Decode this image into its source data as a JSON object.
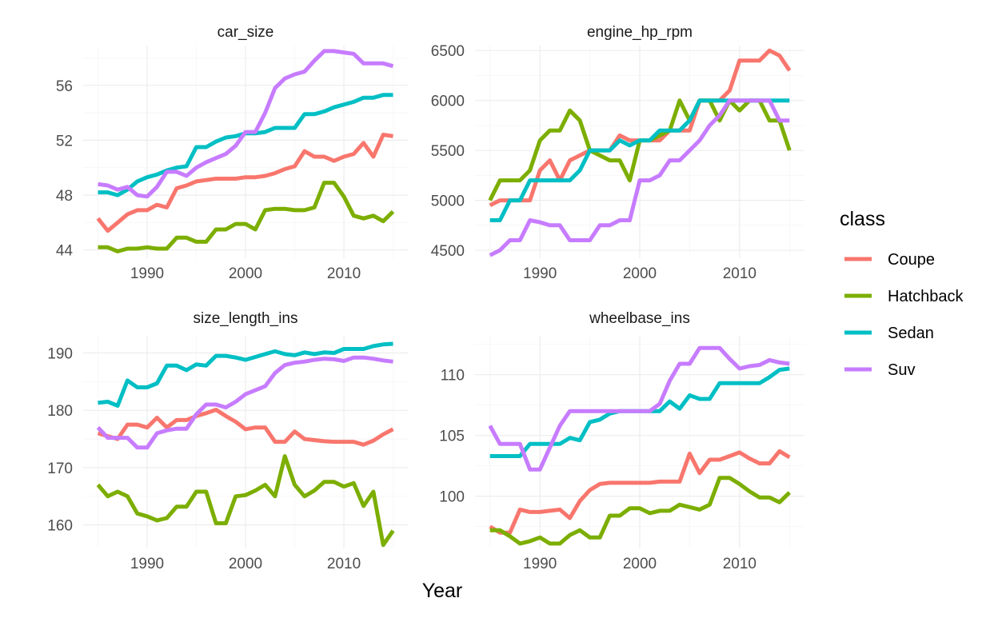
{
  "colors": {
    "Coupe": "#F8766D",
    "Hatchback": "#7CAE00",
    "Sedan": "#00BFC4",
    "Suv": "#C77CFF"
  },
  "axis": {
    "xlabel": "Year"
  },
  "legend": {
    "title": "class",
    "placement": "right",
    "items": [
      "Coupe",
      "Hatchback",
      "Sedan",
      "Suv"
    ]
  },
  "chart_data": [
    {
      "type": "line",
      "title": "car_size",
      "xlabel": "Year",
      "ylabel": "",
      "xlim": [
        1983.5,
        2016.5
      ],
      "ylim": [
        43.4,
        58.9
      ],
      "xticks": [
        1990,
        2000,
        2010
      ],
      "yticks": [
        44,
        48,
        52,
        56
      ],
      "x": [
        1985,
        1986,
        1987,
        1988,
        1989,
        1990,
        1991,
        1992,
        1993,
        1994,
        1995,
        1996,
        1997,
        1998,
        1999,
        2000,
        2001,
        2002,
        2003,
        2004,
        2005,
        2006,
        2007,
        2008,
        2009,
        2010,
        2011,
        2012,
        2013,
        2014,
        2015
      ],
      "series": [
        {
          "name": "Coupe",
          "values": [
            46.3,
            45.4,
            46.0,
            46.6,
            46.9,
            46.9,
            47.3,
            47.1,
            48.5,
            48.7,
            49.0,
            49.1,
            49.2,
            49.2,
            49.2,
            49.3,
            49.3,
            49.4,
            49.6,
            49.9,
            50.1,
            51.2,
            50.8,
            50.8,
            50.5,
            50.8,
            51.0,
            51.8,
            50.8,
            52.4,
            52.3
          ]
        },
        {
          "name": "Hatchback",
          "values": [
            44.2,
            44.2,
            43.9,
            44.1,
            44.1,
            44.2,
            44.1,
            44.1,
            44.9,
            44.9,
            44.6,
            44.6,
            45.5,
            45.5,
            45.9,
            45.9,
            45.5,
            46.9,
            47.0,
            47.0,
            46.9,
            46.9,
            47.1,
            48.9,
            48.9,
            47.9,
            46.5,
            46.3,
            46.5,
            46.1,
            46.8
          ]
        },
        {
          "name": "Sedan",
          "values": [
            48.2,
            48.2,
            48.0,
            48.4,
            49.0,
            49.3,
            49.5,
            49.8,
            50.0,
            50.1,
            51.5,
            51.5,
            51.9,
            52.2,
            52.3,
            52.5,
            52.5,
            52.6,
            52.9,
            52.9,
            52.9,
            53.9,
            53.9,
            54.1,
            54.4,
            54.6,
            54.8,
            55.1,
            55.1,
            55.3,
            55.3
          ]
        },
        {
          "name": "Suv",
          "values": [
            48.8,
            48.7,
            48.4,
            48.6,
            48.0,
            47.9,
            48.6,
            49.7,
            49.7,
            49.4,
            50.0,
            50.4,
            50.7,
            51.0,
            51.6,
            52.6,
            52.6,
            54.0,
            55.8,
            56.5,
            56.8,
            57.0,
            57.8,
            58.5,
            58.5,
            58.4,
            58.3,
            57.6,
            57.6,
            57.6,
            57.4
          ]
        }
      ]
    },
    {
      "type": "line",
      "title": "engine_hp_rpm",
      "xlabel": "Year",
      "ylabel": "",
      "xlim": [
        1983.5,
        2016.5
      ],
      "ylim": [
        4420,
        6550
      ],
      "xticks": [
        1990,
        2000,
        2010
      ],
      "yticks": [
        4500,
        5000,
        5500,
        6000,
        6500
      ],
      "x": [
        1985,
        1986,
        1987,
        1988,
        1989,
        1990,
        1991,
        1992,
        1993,
        1994,
        1995,
        1996,
        1997,
        1998,
        1999,
        2000,
        2001,
        2002,
        2003,
        2004,
        2005,
        2006,
        2007,
        2008,
        2009,
        2010,
        2011,
        2012,
        2013,
        2014,
        2015
      ],
      "series": [
        {
          "name": "Coupe",
          "values": [
            4950,
            5000,
            5000,
            5000,
            5000,
            5300,
            5400,
            5200,
            5400,
            5450,
            5500,
            5500,
            5500,
            5650,
            5600,
            5600,
            5600,
            5600,
            5700,
            5700,
            5700,
            6000,
            6000,
            6000,
            6100,
            6400,
            6400,
            6400,
            6500,
            6450,
            6300
          ]
        },
        {
          "name": "Hatchback",
          "values": [
            5000,
            5200,
            5200,
            5200,
            5300,
            5600,
            5700,
            5700,
            5900,
            5800,
            5500,
            5450,
            5400,
            5400,
            5200,
            5600,
            5600,
            5650,
            5700,
            6000,
            5800,
            6000,
            6000,
            5800,
            6000,
            5900,
            6000,
            6000,
            5800,
            5800,
            5500
          ]
        },
        {
          "name": "Sedan",
          "values": [
            4800,
            4800,
            5000,
            5000,
            5200,
            5200,
            5200,
            5200,
            5200,
            5300,
            5500,
            5500,
            5500,
            5600,
            5550,
            5600,
            5600,
            5700,
            5700,
            5700,
            5800,
            6000,
            6000,
            6000,
            6000,
            6000,
            6000,
            6000,
            6000,
            6000,
            6000
          ]
        },
        {
          "name": "Suv",
          "values": [
            4450,
            4500,
            4600,
            4600,
            4800,
            4780,
            4750,
            4750,
            4600,
            4600,
            4600,
            4750,
            4750,
            4800,
            4800,
            5200,
            5200,
            5250,
            5400,
            5400,
            5500,
            5600,
            5750,
            5850,
            6000,
            6000,
            6000,
            6000,
            6000,
            5800,
            5800
          ]
        }
      ]
    },
    {
      "type": "line",
      "title": "size_length_ins",
      "xlabel": "Year",
      "ylabel": "",
      "xlim": [
        1983.5,
        2016.5
      ],
      "ylim": [
        155.9,
        193.0
      ],
      "xticks": [
        1990,
        2000,
        2010
      ],
      "yticks": [
        160,
        170,
        180,
        190
      ],
      "x": [
        1985,
        1986,
        1987,
        1988,
        1989,
        1990,
        1991,
        1992,
        1993,
        1994,
        1995,
        1996,
        1997,
        1998,
        1999,
        2000,
        2001,
        2002,
        2003,
        2004,
        2005,
        2006,
        2007,
        2008,
        2009,
        2010,
        2011,
        2012,
        2013,
        2014,
        2015
      ],
      "series": [
        {
          "name": "Coupe",
          "values": [
            176.0,
            175.5,
            175.0,
            177.5,
            177.5,
            177.0,
            178.7,
            177.0,
            178.3,
            178.3,
            179.0,
            179.5,
            180.1,
            179.0,
            178.0,
            176.7,
            177.0,
            177.0,
            174.5,
            174.5,
            176.3,
            175.0,
            174.8,
            174.6,
            174.5,
            174.5,
            174.5,
            174.0,
            174.7,
            175.8,
            176.7
          ]
        },
        {
          "name": "Hatchback",
          "values": [
            167.0,
            165.0,
            165.8,
            165.0,
            162.0,
            161.5,
            160.8,
            161.2,
            163.2,
            163.2,
            165.8,
            165.8,
            160.3,
            160.3,
            165.0,
            165.2,
            166.0,
            167.0,
            165.0,
            172.0,
            167.0,
            165.0,
            166.0,
            167.5,
            167.5,
            166.7,
            167.3,
            163.3,
            165.8,
            156.5,
            159.0
          ]
        },
        {
          "name": "Sedan",
          "values": [
            181.3,
            181.5,
            180.8,
            185.2,
            184.0,
            184.0,
            184.7,
            187.8,
            187.8,
            187.0,
            188.0,
            187.8,
            189.5,
            189.5,
            189.2,
            188.8,
            189.3,
            189.8,
            190.3,
            189.8,
            189.6,
            190.1,
            189.8,
            190.1,
            190.0,
            190.7,
            190.7,
            190.7,
            191.2,
            191.5,
            191.6
          ]
        },
        {
          "name": "Suv",
          "values": [
            177.0,
            175.2,
            175.2,
            175.2,
            173.5,
            173.5,
            176.0,
            176.5,
            176.8,
            176.8,
            179.3,
            181.0,
            181.0,
            180.5,
            181.5,
            182.8,
            183.5,
            184.2,
            186.5,
            187.9,
            188.3,
            188.5,
            188.8,
            189.0,
            188.9,
            188.6,
            189.2,
            189.2,
            189.0,
            188.7,
            188.5
          ]
        }
      ]
    },
    {
      "type": "line",
      "title": "wheelbase_ins",
      "xlabel": "Year",
      "ylabel": "",
      "xlim": [
        1983.5,
        2016.5
      ],
      "ylim": [
        95.7,
        113.2
      ],
      "xticks": [
        1990,
        2000,
        2010
      ],
      "yticks": [
        100,
        105,
        110
      ],
      "x": [
        1985,
        1986,
        1987,
        1988,
        1989,
        1990,
        1991,
        1992,
        1993,
        1994,
        1995,
        1996,
        1997,
        1998,
        1999,
        2000,
        2001,
        2002,
        2003,
        2004,
        2005,
        2006,
        2007,
        2008,
        2009,
        2010,
        2011,
        2012,
        2013,
        2014,
        2015
      ],
      "series": [
        {
          "name": "Coupe",
          "values": [
            97.5,
            97.0,
            97.0,
            98.9,
            98.7,
            98.7,
            98.8,
            98.9,
            98.2,
            99.6,
            100.5,
            101.0,
            101.1,
            101.1,
            101.1,
            101.1,
            101.1,
            101.2,
            101.2,
            101.2,
            103.5,
            101.9,
            103.0,
            103.0,
            103.3,
            103.6,
            103.1,
            102.7,
            102.7,
            103.7,
            103.2
          ]
        },
        {
          "name": "Hatchback",
          "values": [
            97.2,
            97.2,
            96.7,
            96.1,
            96.3,
            96.6,
            96.1,
            96.1,
            96.8,
            97.2,
            96.6,
            96.6,
            98.4,
            98.4,
            99.0,
            99.0,
            98.6,
            98.8,
            98.8,
            99.3,
            99.1,
            98.9,
            99.3,
            101.5,
            101.5,
            101.0,
            100.4,
            99.9,
            99.9,
            99.5,
            100.3
          ]
        },
        {
          "name": "Sedan",
          "values": [
            103.3,
            103.3,
            103.3,
            103.3,
            104.3,
            104.3,
            104.3,
            104.3,
            104.8,
            104.6,
            106.1,
            106.3,
            106.8,
            107.0,
            107.0,
            107.0,
            107.0,
            107.0,
            107.8,
            107.2,
            108.3,
            108.0,
            108.0,
            109.3,
            109.3,
            109.3,
            109.3,
            109.3,
            109.8,
            110.4,
            110.5
          ]
        },
        {
          "name": "Suv",
          "values": [
            105.8,
            104.3,
            104.3,
            104.3,
            102.2,
            102.2,
            104.0,
            105.8,
            107.0,
            107.0,
            107.0,
            107.0,
            107.0,
            107.0,
            107.0,
            107.0,
            107.0,
            107.6,
            109.5,
            110.9,
            110.9,
            112.2,
            112.2,
            112.2,
            111.3,
            110.5,
            110.7,
            110.8,
            111.2,
            111.0,
            110.9
          ]
        }
      ]
    }
  ]
}
